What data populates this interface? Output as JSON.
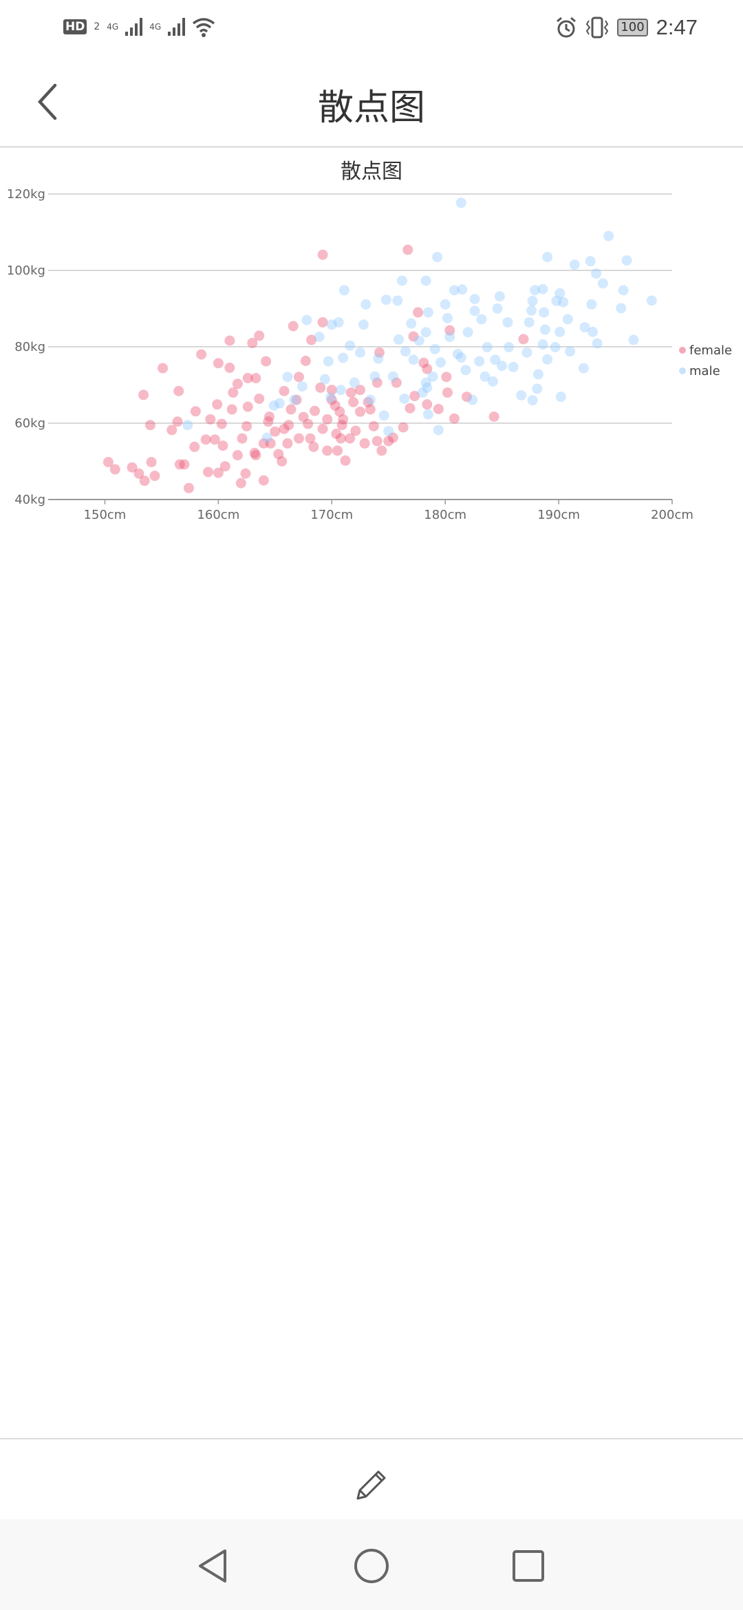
{
  "status_bar": {
    "time": "2:47",
    "battery": "100",
    "hd": "HD",
    "sim": "2",
    "network1": "4G",
    "network2": "4G"
  },
  "header": {
    "title": "散点图",
    "back_icon": "chevron-left-icon"
  },
  "bottom": {
    "edit_icon": "pencil-icon"
  },
  "navbar": {
    "back_icon": "triangle-back-icon",
    "home_icon": "circle-home-icon",
    "recents_icon": "square-recents-icon"
  },
  "chart_data": {
    "type": "scatter",
    "title": "散点图",
    "xlim": [
      145,
      200
    ],
    "ylim": [
      40,
      120
    ],
    "x_ticks": [
      "150cm",
      "160cm",
      "170cm",
      "180cm",
      "190cm",
      "200cm"
    ],
    "x_tick_values": [
      150,
      160,
      170,
      180,
      190,
      200
    ],
    "y_ticks": [
      "40kg",
      "60kg",
      "80kg",
      "100kg",
      "120kg"
    ],
    "y_tick_values": [
      40,
      60,
      80,
      100,
      120
    ],
    "grid": true,
    "legend_position": "right",
    "series": [
      {
        "name": "female",
        "color": "#ec5171",
        "points": [
          [
            150.3,
            49.8
          ],
          [
            150.9,
            47.9
          ],
          [
            152.4,
            48.4
          ],
          [
            153,
            46.8
          ],
          [
            153.5,
            44.9
          ],
          [
            153.4,
            67.4
          ],
          [
            154,
            59.5
          ],
          [
            154.1,
            49.8
          ],
          [
            154.4,
            46.2
          ],
          [
            155.1,
            74.4
          ],
          [
            155.9,
            58.2
          ],
          [
            156.4,
            60.4
          ],
          [
            156.5,
            68.4
          ],
          [
            156.6,
            49.2
          ],
          [
            157,
            49.2
          ],
          [
            157.4,
            43
          ],
          [
            157.9,
            53.8
          ],
          [
            158,
            63.1
          ],
          [
            158.5,
            78
          ],
          [
            159.1,
            47.2
          ],
          [
            158.9,
            55.7
          ],
          [
            159.3,
            61
          ],
          [
            159.9,
            64.9
          ],
          [
            160,
            75.7
          ],
          [
            160,
            47
          ],
          [
            160.3,
            59.8
          ],
          [
            160.6,
            48.7
          ],
          [
            161,
            81.6
          ],
          [
            161,
            74.5
          ],
          [
            161.2,
            63.6
          ],
          [
            161.3,
            68
          ],
          [
            161.7,
            70.3
          ],
          [
            162,
            44.3
          ],
          [
            162.1,
            56
          ],
          [
            162.4,
            46.8
          ],
          [
            162.6,
            64.3
          ],
          [
            162.6,
            71.8
          ],
          [
            163,
            81
          ],
          [
            163.3,
            71.8
          ],
          [
            163.3,
            51.6
          ],
          [
            163.6,
            82.9
          ],
          [
            163.6,
            66.4
          ],
          [
            164,
            54.7
          ],
          [
            164,
            45
          ],
          [
            164.2,
            76.2
          ],
          [
            164.4,
            60.4
          ],
          [
            165,
            57.8
          ],
          [
            165.3,
            51.9
          ],
          [
            165.6,
            50
          ],
          [
            165.8,
            68.4
          ],
          [
            166.1,
            54.7
          ],
          [
            166.2,
            59.5
          ],
          [
            166.6,
            85.4
          ],
          [
            166.9,
            66.1
          ],
          [
            167.1,
            72.1
          ],
          [
            167.5,
            61.6
          ],
          [
            167.7,
            76.3
          ],
          [
            168.2,
            81.8
          ],
          [
            168.4,
            53.8
          ],
          [
            168.5,
            63.2
          ],
          [
            169,
            69.3
          ],
          [
            169.2,
            86.4
          ],
          [
            169.2,
            104.1
          ],
          [
            169.6,
            52.8
          ],
          [
            170,
            68.7
          ],
          [
            170.3,
            64.6
          ],
          [
            170.5,
            52.8
          ],
          [
            170.7,
            63
          ],
          [
            170.9,
            59.5
          ],
          [
            171.2,
            50.2
          ],
          [
            171.6,
            56
          ],
          [
            171.7,
            68
          ],
          [
            172.1,
            58
          ],
          [
            172.5,
            68.7
          ],
          [
            172.9,
            54.7
          ],
          [
            173.2,
            65.5
          ],
          [
            173.7,
            59.2
          ],
          [
            174,
            70.6
          ],
          [
            174,
            55.3
          ],
          [
            174.2,
            78.5
          ],
          [
            174.4,
            52.8
          ],
          [
            175,
            55.3
          ],
          [
            175.4,
            56.2
          ],
          [
            175.7,
            70.6
          ],
          [
            176.3,
            58.9
          ],
          [
            176.7,
            105.4
          ],
          [
            176.9,
            63.9
          ],
          [
            177.2,
            82.7
          ],
          [
            177.3,
            67.1
          ],
          [
            177.6,
            89
          ],
          [
            178.1,
            75.8
          ],
          [
            178.4,
            64.9
          ],
          [
            178.4,
            74.2
          ],
          [
            179.4,
            63.7
          ],
          [
            180.1,
            72.1
          ],
          [
            180.2,
            68
          ],
          [
            180.4,
            84.3
          ],
          [
            180.8,
            61.2
          ],
          [
            181.9,
            66.9
          ],
          [
            184.3,
            61.7
          ],
          [
            186.9,
            82
          ],
          [
            159.7,
            55.7
          ],
          [
            160.4,
            54.1
          ],
          [
            161.7,
            51.6
          ],
          [
            162.5,
            59.2
          ],
          [
            163.2,
            52.2
          ],
          [
            164.5,
            61.7
          ],
          [
            164.6,
            54.7
          ],
          [
            165.8,
            58.5
          ],
          [
            166.4,
            63.6
          ],
          [
            167.1,
            56
          ],
          [
            167.9,
            59.8
          ],
          [
            168.1,
            56
          ],
          [
            169.2,
            58.5
          ],
          [
            169.6,
            61
          ],
          [
            170,
            66.1
          ],
          [
            170.4,
            57.2
          ],
          [
            170.8,
            56
          ],
          [
            171,
            61
          ],
          [
            172.5,
            63
          ],
          [
            173.4,
            63.6
          ],
          [
            171.9,
            65.5
          ]
        ]
      },
      {
        "name": "male",
        "color": "#91c8ff",
        "points": [
          [
            157.3,
            59.5
          ],
          [
            164.3,
            56.2
          ],
          [
            164.9,
            64.6
          ],
          [
            165.4,
            65.2
          ],
          [
            166.1,
            72.1
          ],
          [
            166.7,
            66.1
          ],
          [
            167.4,
            69.6
          ],
          [
            167.8,
            87
          ],
          [
            168.9,
            82.6
          ],
          [
            169.4,
            71.5
          ],
          [
            169.7,
            76.2
          ],
          [
            169.9,
            66.7
          ],
          [
            170,
            85.8
          ],
          [
            170.6,
            86.4
          ],
          [
            170.8,
            68.7
          ],
          [
            171,
            77.1
          ],
          [
            171.1,
            94.8
          ],
          [
            171.6,
            80.3
          ],
          [
            172,
            70.6
          ],
          [
            172.5,
            78.5
          ],
          [
            172.8,
            85.8
          ],
          [
            173,
            91.1
          ],
          [
            173.4,
            66.1
          ],
          [
            173.8,
            72.2
          ],
          [
            174.1,
            76.9
          ],
          [
            174.6,
            62
          ],
          [
            174.8,
            92.3
          ],
          [
            175,
            57.9
          ],
          [
            175.4,
            72.2
          ],
          [
            175.8,
            92.1
          ],
          [
            175.9,
            81.9
          ],
          [
            176.2,
            97.3
          ],
          [
            176.4,
            66.4
          ],
          [
            176.5,
            78.8
          ],
          [
            177,
            86.1
          ],
          [
            177.2,
            76.6
          ],
          [
            177.7,
            81.6
          ],
          [
            178,
            68
          ],
          [
            178.3,
            97.3
          ],
          [
            178.3,
            83.8
          ],
          [
            178.5,
            89
          ],
          [
            178.5,
            62.3
          ],
          [
            178.9,
            72.2
          ],
          [
            179.1,
            79.4
          ],
          [
            179.3,
            103.5
          ],
          [
            179.4,
            58.2
          ],
          [
            179.6,
            75.9
          ],
          [
            180,
            91.1
          ],
          [
            180.2,
            87.5
          ],
          [
            180.4,
            82.6
          ],
          [
            180.8,
            94.8
          ],
          [
            181.1,
            78.1
          ],
          [
            181.4,
            117.7
          ],
          [
            181.4,
            77.2
          ],
          [
            181.5,
            95
          ],
          [
            181.8,
            73.9
          ],
          [
            182,
            83.8
          ],
          [
            182.4,
            66.1
          ],
          [
            182.6,
            92.5
          ],
          [
            182.6,
            89.4
          ],
          [
            183,
            76.2
          ],
          [
            183.2,
            87.2
          ],
          [
            183.5,
            72.2
          ],
          [
            183.7,
            79.9
          ],
          [
            184.2,
            70.9
          ],
          [
            184.4,
            76.6
          ],
          [
            184.6,
            90
          ],
          [
            184.8,
            93.2
          ],
          [
            185,
            75
          ],
          [
            185.5,
            86.4
          ],
          [
            185.6,
            79.9
          ],
          [
            186,
            74.7
          ],
          [
            186.7,
            67.3
          ],
          [
            187.2,
            78.5
          ],
          [
            187.4,
            86.4
          ],
          [
            187.6,
            89.5
          ],
          [
            187.7,
            92
          ],
          [
            187.7,
            66
          ],
          [
            187.9,
            94.8
          ],
          [
            188.1,
            69
          ],
          [
            188.2,
            72.8
          ],
          [
            188.6,
            95.1
          ],
          [
            188.6,
            80.6
          ],
          [
            188.7,
            89
          ],
          [
            188.8,
            84.5
          ],
          [
            189,
            103.5
          ],
          [
            189,
            76.7
          ],
          [
            189.7,
            79.9
          ],
          [
            189.8,
            92
          ],
          [
            190.1,
            94
          ],
          [
            190.1,
            83.9
          ],
          [
            190.2,
            66.9
          ],
          [
            190.4,
            91.7
          ],
          [
            190.8,
            87.2
          ],
          [
            191,
            78.8
          ],
          [
            191.4,
            101.5
          ],
          [
            192.2,
            74.4
          ],
          [
            192.3,
            85.1
          ],
          [
            192.8,
            102.4
          ],
          [
            192.9,
            91.1
          ],
          [
            193,
            83.9
          ],
          [
            193.3,
            99.2
          ],
          [
            193.4,
            80.9
          ],
          [
            193.9,
            96.6
          ],
          [
            194.4,
            109
          ],
          [
            195.5,
            90.1
          ],
          [
            195.7,
            94.8
          ],
          [
            196,
            102.6
          ],
          [
            196.6,
            81.8
          ],
          [
            198.2,
            92.1
          ],
          [
            178.3,
            70.6
          ],
          [
            178.4,
            69.3
          ]
        ]
      }
    ]
  }
}
